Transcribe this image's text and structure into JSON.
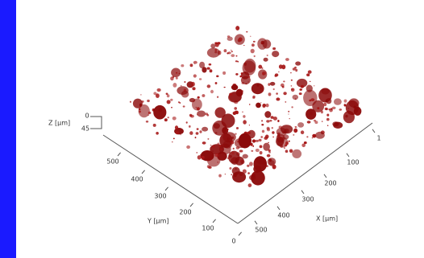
{
  "figure": {
    "z_axis": {
      "label": "Z [µm]",
      "ticks": [
        "0",
        "45"
      ]
    },
    "y_axis": {
      "label": "Y [µm]",
      "ticks": [
        "0",
        "100",
        "200",
        "300",
        "400",
        "500"
      ]
    },
    "x_axis": {
      "label": "X [µm]",
      "ticks": [
        "500",
        "400",
        "300",
        "200",
        "100",
        "1"
      ]
    }
  }
}
